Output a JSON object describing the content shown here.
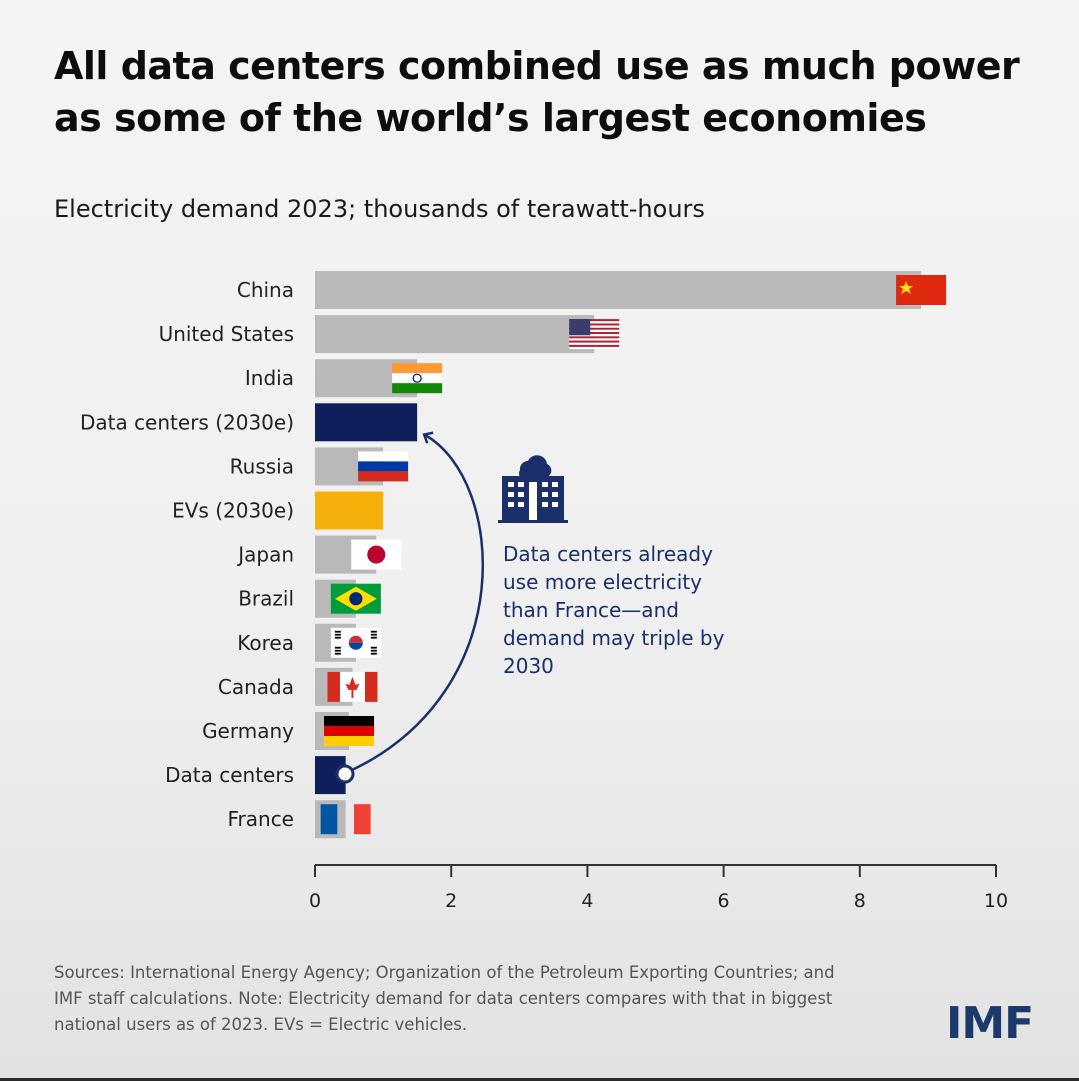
{
  "title": "All data centers combined use as much power as some of the world’s largest economies",
  "subtitle": "Electricity demand 2023; thousands of terawatt-hours",
  "annotation": "Data centers already use more electricity than France—and demand may triple by 2030",
  "sources": "Sources: International Energy Agency; Organization of the Petroleum Exporting Countries; and IMF staff calculations. Note: Electricity demand for data centers compares with that in biggest national users as of 2023. EVs = Electric vehicles.",
  "logo": "IMF",
  "colors": {
    "country_bar": "#b9b9b9",
    "data_centers": "#0f1f5c",
    "evs": "#f5b10a",
    "arrow": "#1b2f6b",
    "axis": "#333333"
  },
  "chart_data": {
    "type": "bar",
    "orientation": "horizontal",
    "title": "All data centers combined use as much power as some of the world’s largest economies",
    "subtitle": "Electricity demand 2023; thousands of terawatt-hours",
    "xlim": [
      0,
      10
    ],
    "xticks": [
      0,
      2,
      4,
      6,
      8,
      10
    ],
    "categories": [
      "China",
      "United States",
      "India",
      "Data centers (2030e)",
      "Russia",
      "EVs (2030e)",
      "Japan",
      "Brazil",
      "Korea",
      "Canada",
      "Germany",
      "Data centers",
      "France"
    ],
    "values": [
      8.9,
      4.1,
      1.5,
      1.5,
      1.0,
      1.0,
      0.9,
      0.6,
      0.6,
      0.55,
      0.5,
      0.45,
      0.45
    ],
    "kinds": [
      "country",
      "country",
      "country",
      "datacenter",
      "country",
      "ev",
      "country",
      "country",
      "country",
      "country",
      "country",
      "datacenter",
      "country"
    ],
    "flags": [
      "china",
      "us",
      "india",
      "",
      "russia",
      "",
      "japan",
      "brazil",
      "korea",
      "canada",
      "germany",
      "",
      "france"
    ]
  }
}
